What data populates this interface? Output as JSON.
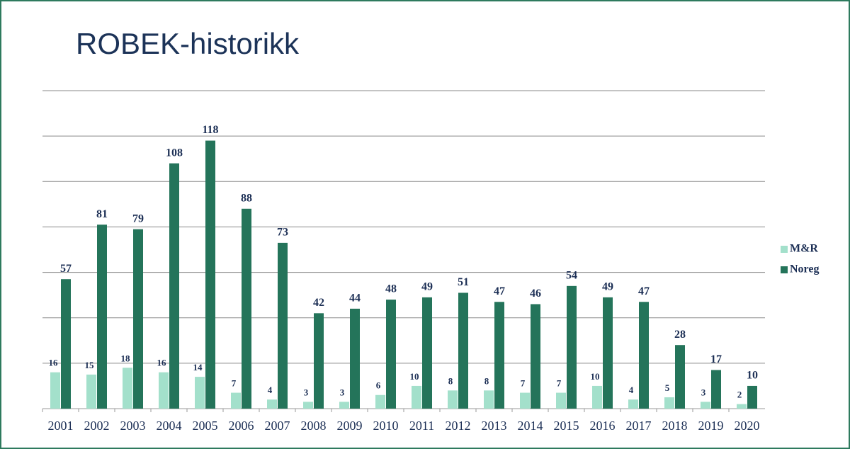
{
  "chart_data": {
    "type": "bar",
    "title": "ROBEK-historikk",
    "categories": [
      "2001",
      "2002",
      "2003",
      "2004",
      "2005",
      "2006",
      "2007",
      "2008",
      "2009",
      "2010",
      "2011",
      "2012",
      "2013",
      "2014",
      "2015",
      "2016",
      "2017",
      "2018",
      "2019",
      "2020"
    ],
    "series": [
      {
        "name": "M&R",
        "color": "#a3e0cb",
        "values": [
          16,
          15,
          18,
          16,
          14,
          7,
          4,
          3,
          3,
          6,
          10,
          8,
          8,
          7,
          7,
          10,
          4,
          5,
          3,
          2
        ]
      },
      {
        "name": "Noreg",
        "color": "#24745a",
        "values": [
          57,
          81,
          79,
          108,
          118,
          88,
          73,
          42,
          44,
          48,
          49,
          51,
          47,
          46,
          54,
          49,
          47,
          28,
          17,
          10
        ]
      }
    ],
    "ylim": [
      0,
      140
    ],
    "yticks": [
      0,
      20,
      40,
      60,
      80,
      100,
      120,
      140
    ],
    "grid": true,
    "legend": "right"
  }
}
